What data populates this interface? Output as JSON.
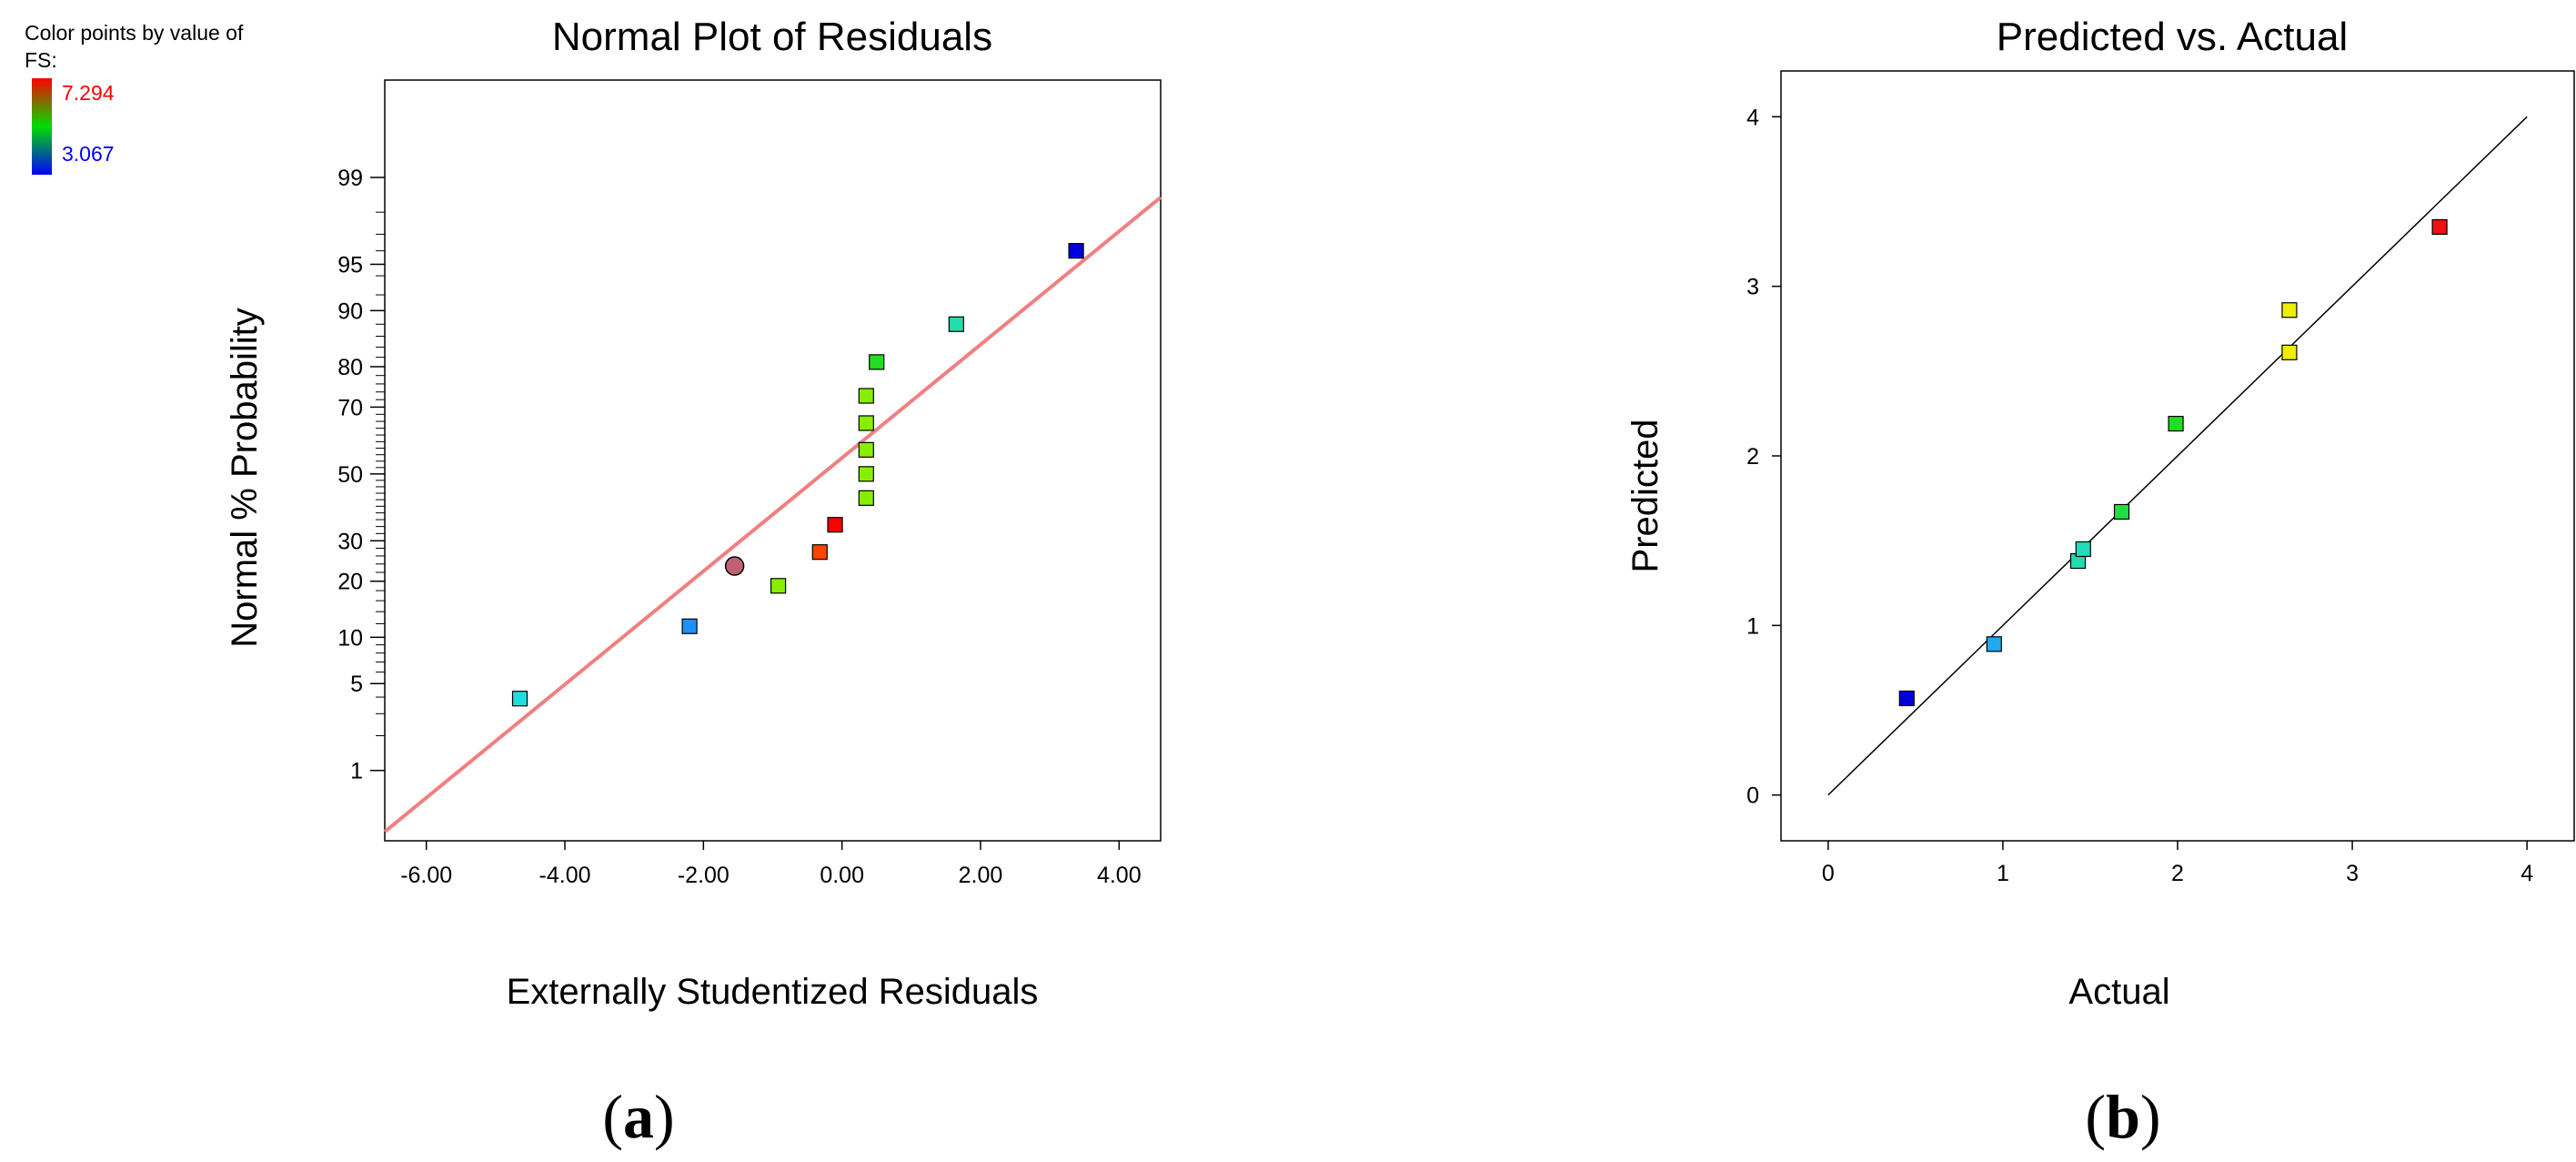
{
  "legend": {
    "title_line1": "Color points by value of",
    "title_line2": "FS:",
    "max_label": "7.294",
    "min_label": "3.067",
    "colors": {
      "max": "#ff0000",
      "mid": "#00dd00",
      "min": "#0000ff"
    }
  },
  "panels": {
    "a": {
      "open": "(",
      "letter": "a",
      "close": ")"
    },
    "b": {
      "open": "(",
      "letter": "b",
      "close": ")"
    }
  },
  "chart_data": [
    {
      "type": "scatter",
      "title": "Normal Plot of Residuals",
      "xlabel": "Externally Studentized Residuals",
      "ylabel": "Normal % Probability",
      "xlim": [
        -6.6,
        4.6
      ],
      "ylim_probability_percent": [
        0.2,
        99.9
      ],
      "y_scale": "normal-probability",
      "grid": false,
      "x_ticks": [
        -6,
        -4,
        -2,
        0,
        2,
        4
      ],
      "x_tick_labels": [
        "-6.00",
        "-4.00",
        "-2.00",
        "0.00",
        "2.00",
        "4.00"
      ],
      "y_tick_labels_at": [
        1,
        5,
        10,
        20,
        30,
        50,
        70,
        80,
        90,
        95,
        99
      ],
      "y_minor_ticks_at": [
        2,
        3,
        4,
        6,
        7,
        8,
        9,
        12,
        14,
        16,
        18,
        22,
        24,
        26,
        28,
        32,
        34,
        36,
        38,
        40,
        42,
        44,
        46,
        48,
        52,
        54,
        56,
        58,
        60,
        62,
        64,
        66,
        68,
        72,
        74,
        76,
        78,
        82,
        84,
        86,
        88,
        92,
        94,
        96,
        97,
        98
      ],
      "reference_line": {
        "x": [
          -6.6,
          4.6
        ],
        "probability": [
          0.25,
          98.5
        ],
        "color": "#f08080"
      },
      "points": [
        {
          "x": -4.65,
          "p": 3.9,
          "color": "#22dddd",
          "shape": "square"
        },
        {
          "x": -2.2,
          "p": 11.6,
          "color": "#1e90ff",
          "shape": "square"
        },
        {
          "x": -1.55,
          "p": 23.5,
          "color": "#c06070",
          "shape": "circle"
        },
        {
          "x": -0.92,
          "p": 19.0,
          "color": "#88ee00",
          "shape": "square"
        },
        {
          "x": -0.32,
          "p": 27.0,
          "color": "#ff4400",
          "shape": "square"
        },
        {
          "x": -0.1,
          "p": 34.5,
          "color": "#ff0000",
          "shape": "square"
        },
        {
          "x": 0.35,
          "p": 42.5,
          "color": "#88ee00",
          "shape": "square"
        },
        {
          "x": 0.35,
          "p": 50.0,
          "color": "#88ee00",
          "shape": "square"
        },
        {
          "x": 0.35,
          "p": 57.5,
          "color": "#88ee00",
          "shape": "square"
        },
        {
          "x": 0.35,
          "p": 65.5,
          "color": "#88ee00",
          "shape": "square"
        },
        {
          "x": 0.35,
          "p": 73.0,
          "color": "#88ee00",
          "shape": "square"
        },
        {
          "x": 0.5,
          "p": 81.0,
          "color": "#22dd22",
          "shape": "square"
        },
        {
          "x": 1.65,
          "p": 88.0,
          "color": "#22ddaa",
          "shape": "square"
        },
        {
          "x": 3.38,
          "p": 96.0,
          "color": "#0000dd",
          "shape": "square"
        }
      ]
    },
    {
      "type": "scatter",
      "title": "Predicted vs. Actual",
      "xlabel": "Actual",
      "ylabel": "Predicted",
      "xlim": [
        -0.27,
        4.27
      ],
      "ylim": [
        -0.27,
        4.27
      ],
      "grid": false,
      "x_ticks": [
        0,
        1,
        2,
        3,
        4
      ],
      "x_tick_labels": [
        "0",
        "1",
        "2",
        "3",
        "4"
      ],
      "y_ticks": [
        0,
        1,
        2,
        3,
        4
      ],
      "y_tick_labels": [
        "0",
        "1",
        "2",
        "3",
        "4"
      ],
      "reference_line": {
        "x": [
          0,
          4
        ],
        "y": [
          0,
          4
        ],
        "color": "#000000"
      },
      "points": [
        {
          "x": 0.45,
          "y": 0.57,
          "color": "#0000dd"
        },
        {
          "x": 0.95,
          "y": 0.89,
          "color": "#22aaee"
        },
        {
          "x": 1.43,
          "y": 1.38,
          "color": "#22ddaa"
        },
        {
          "x": 1.46,
          "y": 1.45,
          "color": "#22ddbb"
        },
        {
          "x": 1.68,
          "y": 1.67,
          "color": "#22dd44"
        },
        {
          "x": 1.99,
          "y": 2.19,
          "color": "#22dd22"
        },
        {
          "x": 2.64,
          "y": 2.61,
          "color": "#eeee00"
        },
        {
          "x": 2.64,
          "y": 2.86,
          "color": "#eeee00"
        },
        {
          "x": 3.5,
          "y": 3.35,
          "color": "#ee1111"
        }
      ]
    }
  ]
}
